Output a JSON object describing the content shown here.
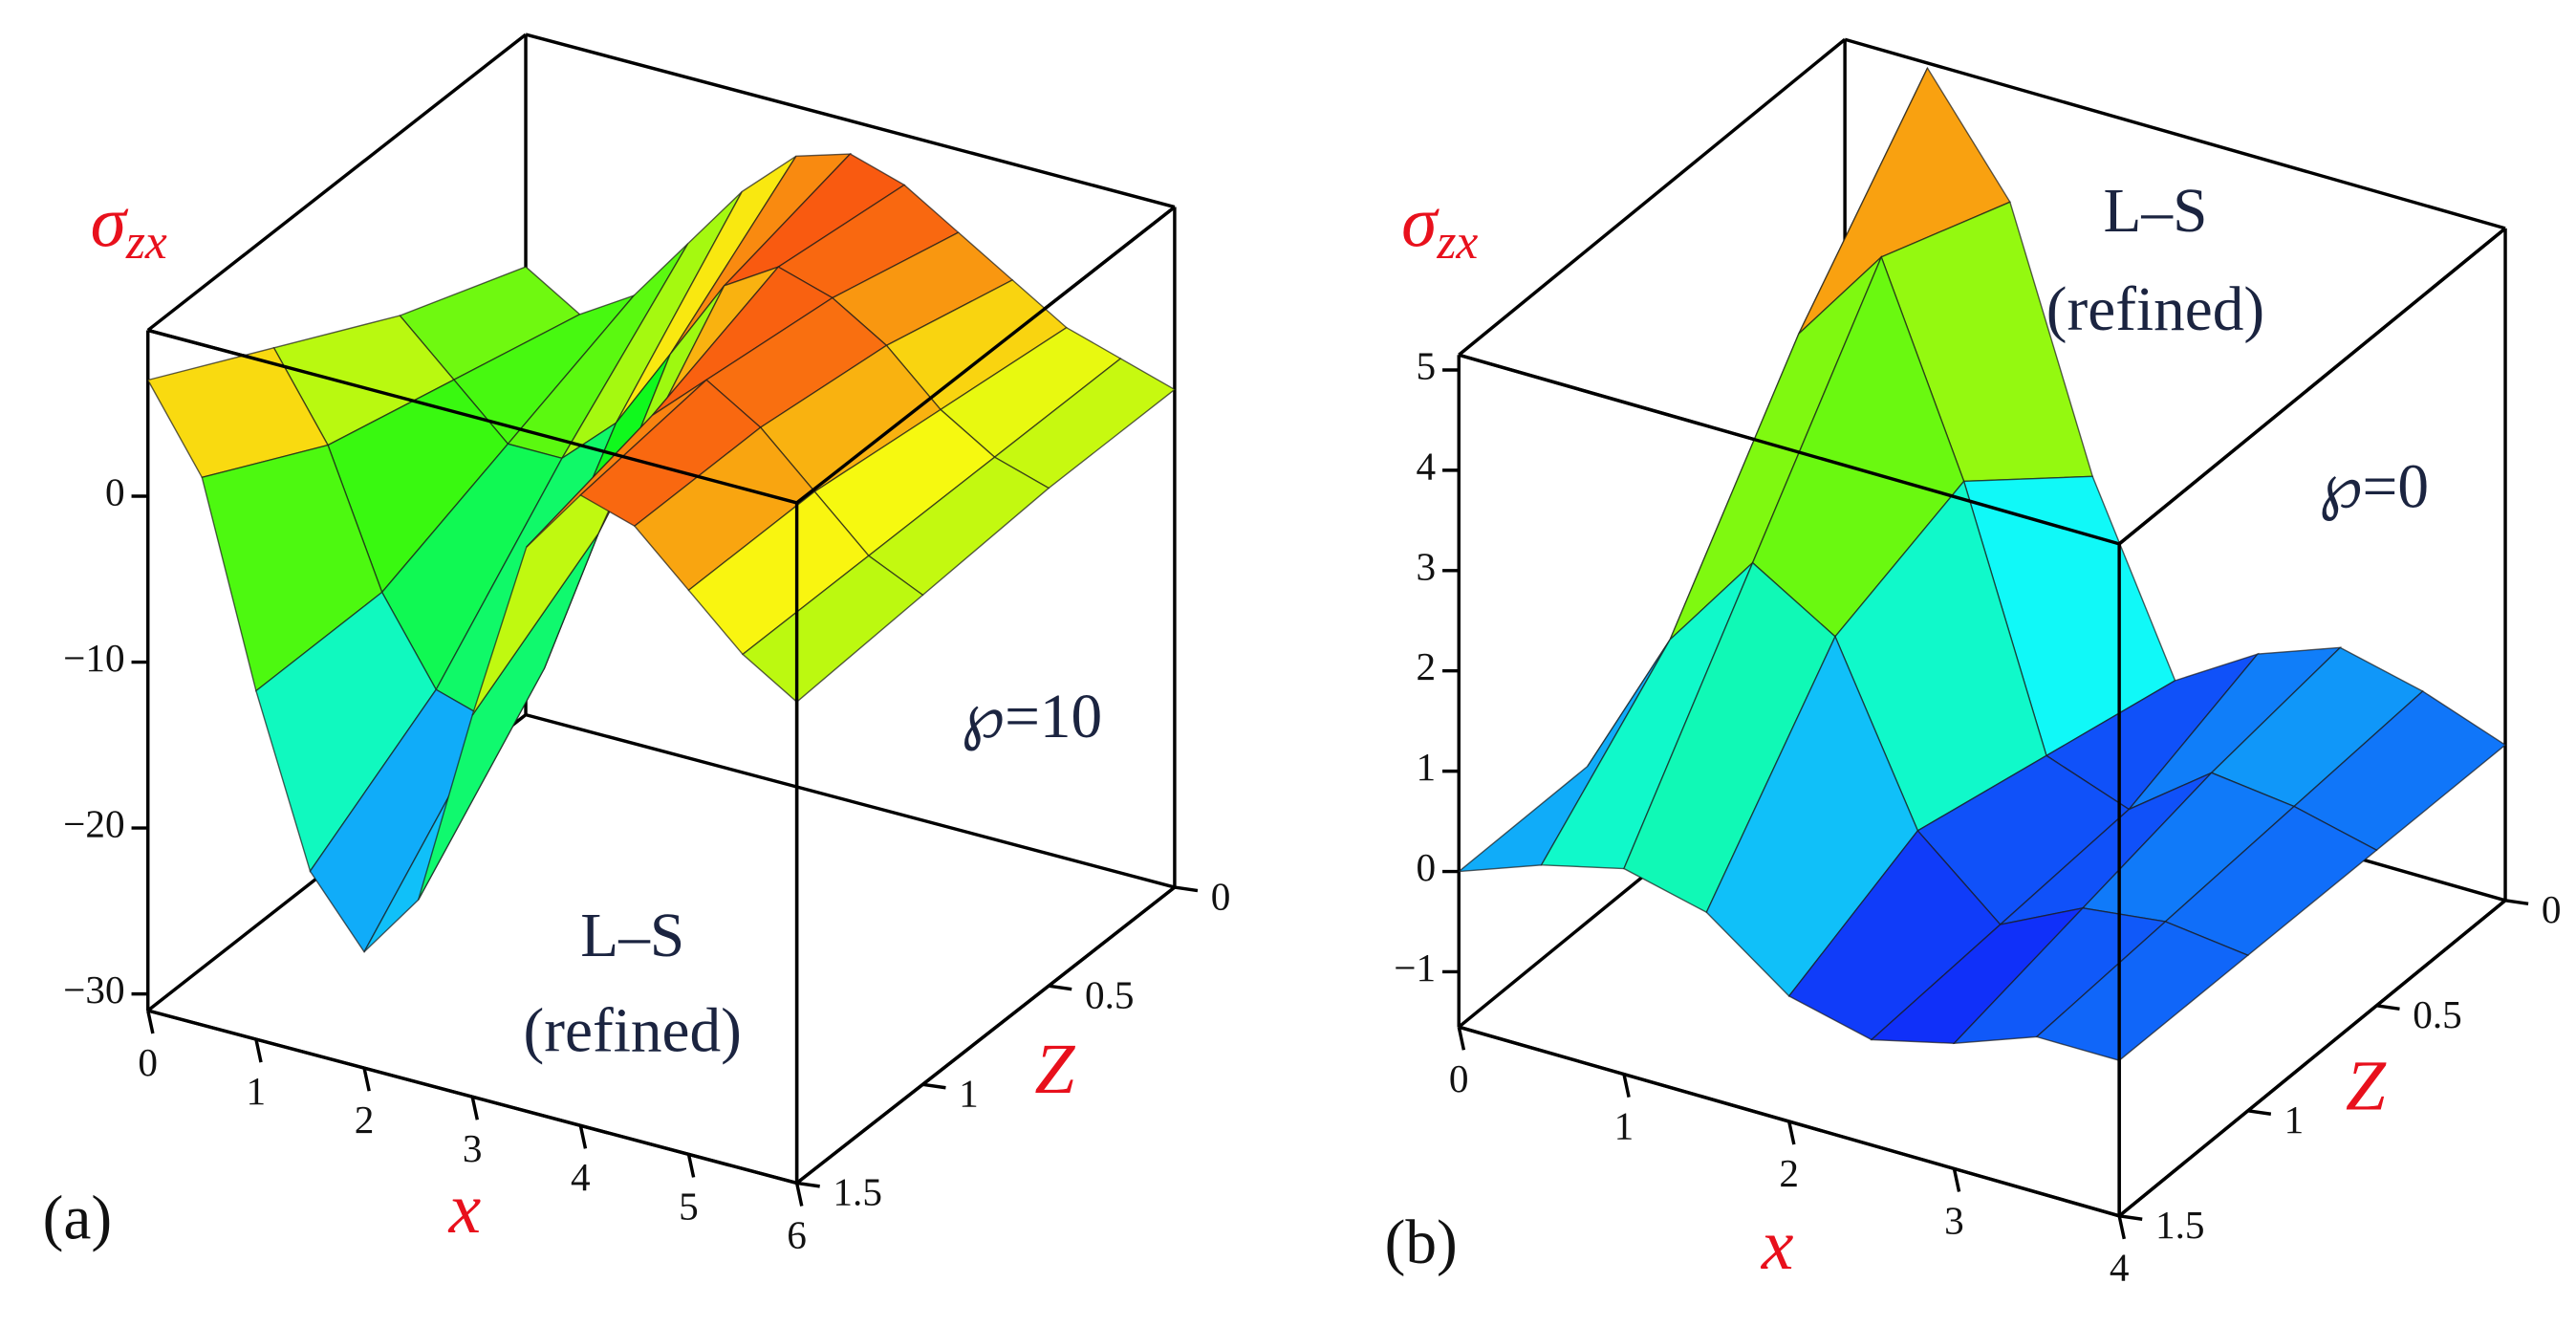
{
  "chart_data": [
    {
      "type": "surface",
      "panel_label": "(a)",
      "value_label": "σ",
      "value_label_sub": "zx",
      "x_label": "x",
      "z_label": "Z",
      "annotations": [
        "L–S",
        "(refined)",
        "℘=10"
      ],
      "x": [
        0,
        0.5,
        1,
        1.5,
        2,
        2.5,
        3,
        3.5,
        4,
        4.5,
        5,
        5.5,
        6
      ],
      "z": [
        0,
        0.5,
        1,
        1.5
      ],
      "values": [
        [
          -4,
          -6,
          -4,
          0,
          4,
          7,
          8,
          7,
          5,
          3,
          1,
          0,
          -1
        ],
        [
          -1,
          -4,
          -7,
          -7,
          -4,
          1,
          6,
          8,
          7,
          5,
          2,
          0,
          -1
        ],
        [
          3,
          -2,
          -10,
          -15,
          -16,
          -12,
          -3,
          5,
          8,
          6,
          3,
          0,
          -1.5
        ],
        [
          7,
          2,
          -10,
          -20,
          -24,
          -20,
          -8,
          3,
          7,
          6,
          3,
          0,
          -2
        ]
      ],
      "xlim": [
        0,
        6
      ],
      "zlim": [
        0,
        1.5
      ],
      "ylim": [
        -31,
        10
      ],
      "xticks": [
        0,
        1,
        2,
        3,
        4,
        5,
        6
      ],
      "zticks": [
        0,
        0.5,
        1,
        1.5
      ],
      "yticks": [
        0,
        {
          "value": -10,
          "label": "−10"
        },
        {
          "value": -20,
          "label": "−20"
        },
        {
          "value": -30,
          "label": "−30"
        }
      ]
    },
    {
      "type": "surface",
      "panel_label": "(b)",
      "value_label": "σ",
      "value_label_sub": "zx",
      "x_label": "x",
      "z_label": "Z",
      "annotations": [
        "L–S",
        "(refined)",
        "℘=0"
      ],
      "x": [
        0,
        0.5,
        1,
        1.5,
        2,
        2.5,
        3,
        3.5,
        4
      ],
      "z": [
        0,
        0.5,
        1,
        1.5
      ],
      "values": [
        [
          0,
          5.1,
          4,
          1.5,
          -0.3,
          0.2,
          0.5,
          0.3,
          0
        ],
        [
          0,
          3.5,
          4.5,
          2.5,
          0,
          -0.3,
          0.3,
          0.2,
          0
        ],
        [
          0,
          1.5,
          2.5,
          2,
          0.3,
          -0.4,
          0,
          0.1,
          0
        ],
        [
          0,
          0.3,
          0.5,
          0.3,
          -0.3,
          -0.5,
          -0.3,
          0,
          0
        ]
      ],
      "xlim": [
        0,
        4
      ],
      "zlim": [
        0,
        1.5
      ],
      "ylim": [
        -1.55,
        5.15
      ],
      "xticks": [
        0,
        1,
        2,
        3,
        4
      ],
      "zticks": [
        0,
        0.5,
        1,
        1.5
      ],
      "yticks": [
        {
          "value": -1,
          "label": "−1"
        },
        0,
        1,
        2,
        3,
        4,
        5
      ]
    }
  ]
}
